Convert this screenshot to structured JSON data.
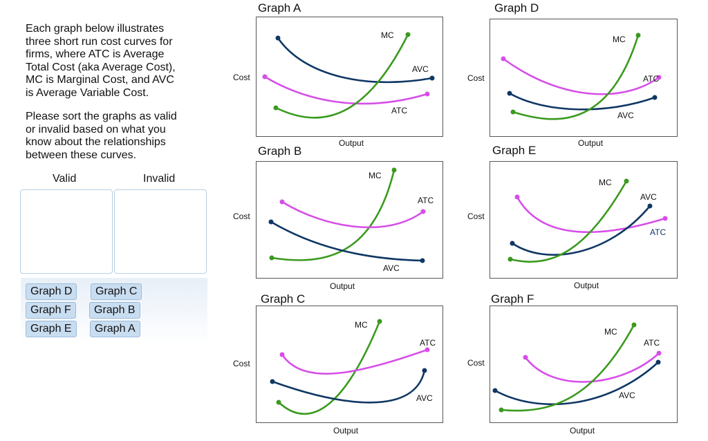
{
  "instructions": {
    "paragraph1": "Each graph below illustrates\nthree short run cost curves for\nfirms, where ATC is Average\nTotal Cost (aka Average Cost),\nMC is Marginal Cost, and AVC\nis Average Variable Cost.",
    "paragraph2": "Please sort the graphs as valid\nor invalid based on what you\nknow about the relationships\nbetween these curves."
  },
  "sorter": {
    "valid_label": "Valid",
    "invalid_label": "Invalid",
    "chips": [
      "Graph D",
      "Graph C",
      "Graph F",
      "Graph B",
      "Graph E",
      "Graph A"
    ]
  },
  "axes": {
    "y_label": "Cost",
    "x_label": "Output"
  },
  "colors": {
    "MC": "#3a9a1e",
    "ATC": "#d64ee8",
    "AVC": "#0f3764",
    "frame": "#555555"
  },
  "graphs": [
    {
      "title": "Graph A",
      "labels": {
        "MC": "MC",
        "AVC": "AVC",
        "ATC": "ATC"
      }
    },
    {
      "title": "Graph B",
      "labels": {
        "MC": "MC",
        "ATC": "ATC",
        "AVC": "AVC"
      }
    },
    {
      "title": "Graph C",
      "labels": {
        "MC": "MC",
        "ATC": "ATC",
        "AVC": "AVC"
      }
    },
    {
      "title": "Graph D",
      "labels": {
        "MC": "MC",
        "ATC": "ATC",
        "AVC": "AVC"
      }
    },
    {
      "title": "Graph E",
      "labels": {
        "MC": "MC",
        "AVC": "AVC",
        "ATC": "ATC"
      }
    },
    {
      "title": "Graph F",
      "labels": {
        "MC": "MC",
        "ATC": "ATC",
        "AVC": "AVC"
      }
    }
  ]
}
